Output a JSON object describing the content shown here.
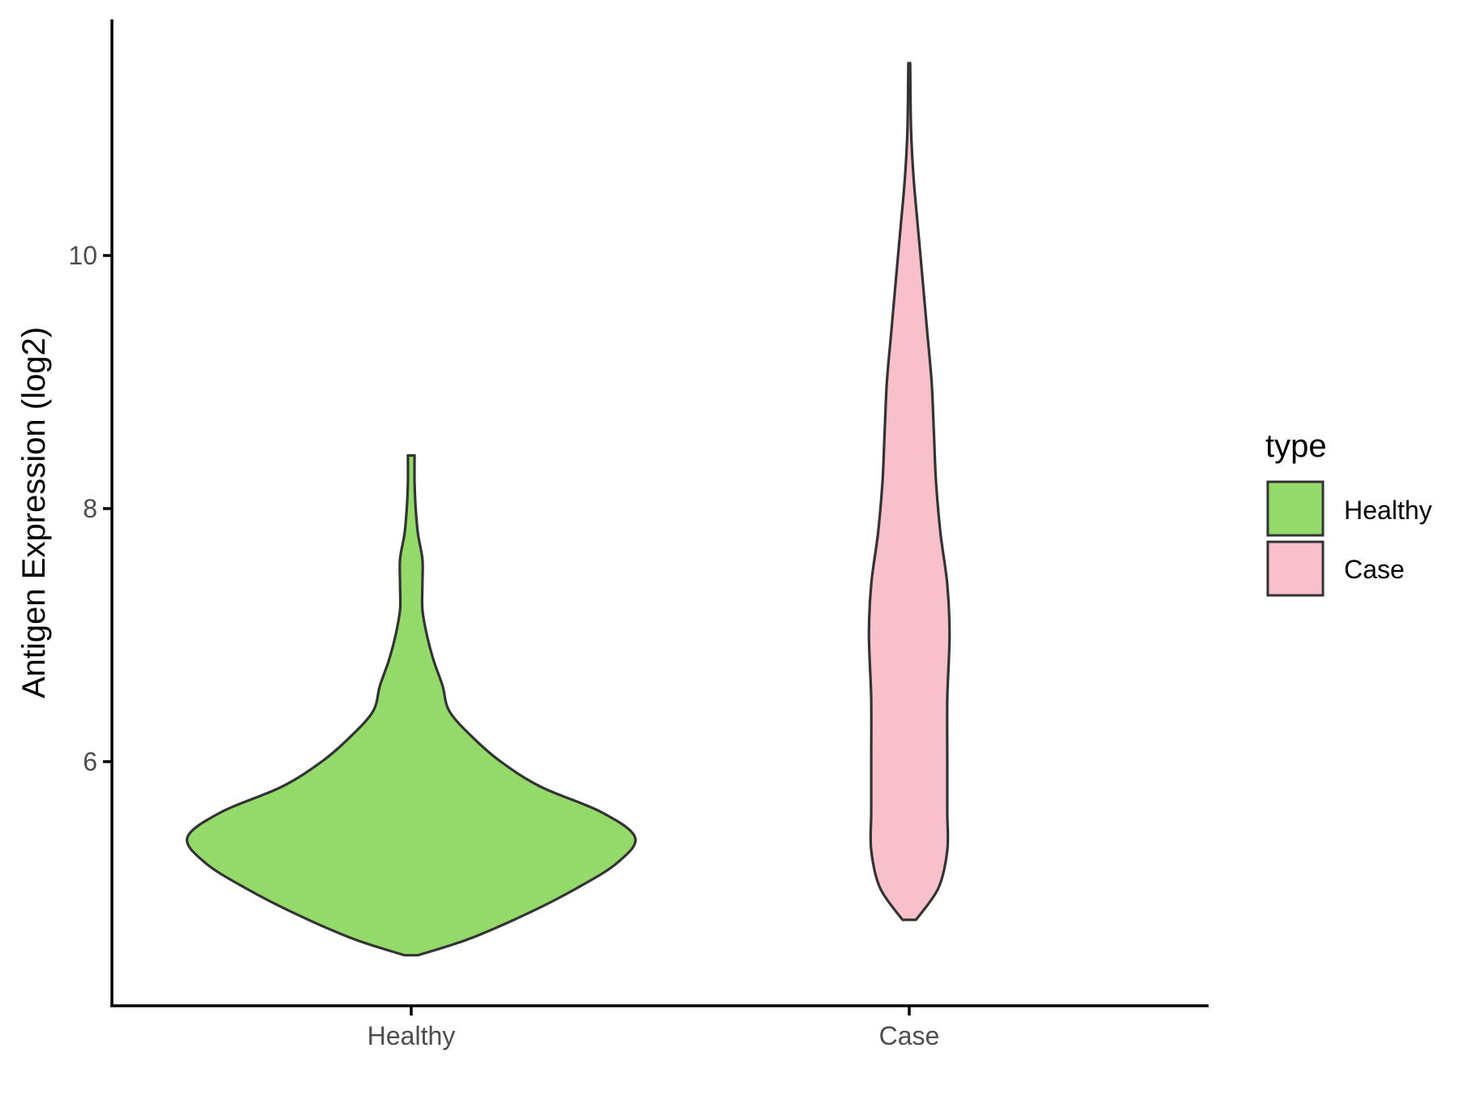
{
  "chart_data": {
    "type": "violin",
    "title": "",
    "xlabel": "",
    "ylabel": "Antigen Expression (log2)",
    "categories": [
      "Healthy",
      "Case"
    ],
    "y_ticks": [
      6,
      8,
      10
    ],
    "ylim": [
      4.1,
      11.9
    ],
    "grid": false,
    "legend": {
      "title": "type",
      "position": "right",
      "entries": [
        {
          "label": "Healthy",
          "color": "#93DA6A"
        },
        {
          "label": "Case",
          "color": "#F7C0CB"
        }
      ]
    },
    "series": [
      {
        "name": "Healthy",
        "color": "#93DA6A",
        "y_min": 4.47,
        "y_max": 8.42,
        "density_profile": [
          [
            4.47,
            0.03
          ],
          [
            4.6,
            0.26
          ],
          [
            4.8,
            0.52
          ],
          [
            5.0,
            0.74
          ],
          [
            5.2,
            0.92
          ],
          [
            5.4,
            1.0
          ],
          [
            5.6,
            0.85
          ],
          [
            5.8,
            0.58
          ],
          [
            6.0,
            0.4
          ],
          [
            6.2,
            0.27
          ],
          [
            6.4,
            0.17
          ],
          [
            6.6,
            0.14
          ],
          [
            6.8,
            0.1
          ],
          [
            7.0,
            0.07
          ],
          [
            7.2,
            0.05
          ],
          [
            7.4,
            0.05
          ],
          [
            7.6,
            0.05
          ],
          [
            7.8,
            0.03
          ],
          [
            8.0,
            0.02
          ],
          [
            8.2,
            0.015
          ],
          [
            8.42,
            0.015
          ]
        ]
      },
      {
        "name": "Case",
        "color": "#F7C0CB",
        "y_min": 4.75,
        "y_max": 11.52,
        "density_profile": [
          [
            4.75,
            0.03
          ],
          [
            5.0,
            0.13
          ],
          [
            5.3,
            0.17
          ],
          [
            5.6,
            0.17
          ],
          [
            6.0,
            0.17
          ],
          [
            6.5,
            0.17
          ],
          [
            7.0,
            0.18
          ],
          [
            7.4,
            0.17
          ],
          [
            7.8,
            0.14
          ],
          [
            8.2,
            0.12
          ],
          [
            8.6,
            0.11
          ],
          [
            9.0,
            0.1
          ],
          [
            9.4,
            0.08
          ],
          [
            9.8,
            0.06
          ],
          [
            10.2,
            0.04
          ],
          [
            10.6,
            0.02
          ],
          [
            11.0,
            0.008
          ],
          [
            11.52,
            0.004
          ]
        ]
      }
    ]
  }
}
